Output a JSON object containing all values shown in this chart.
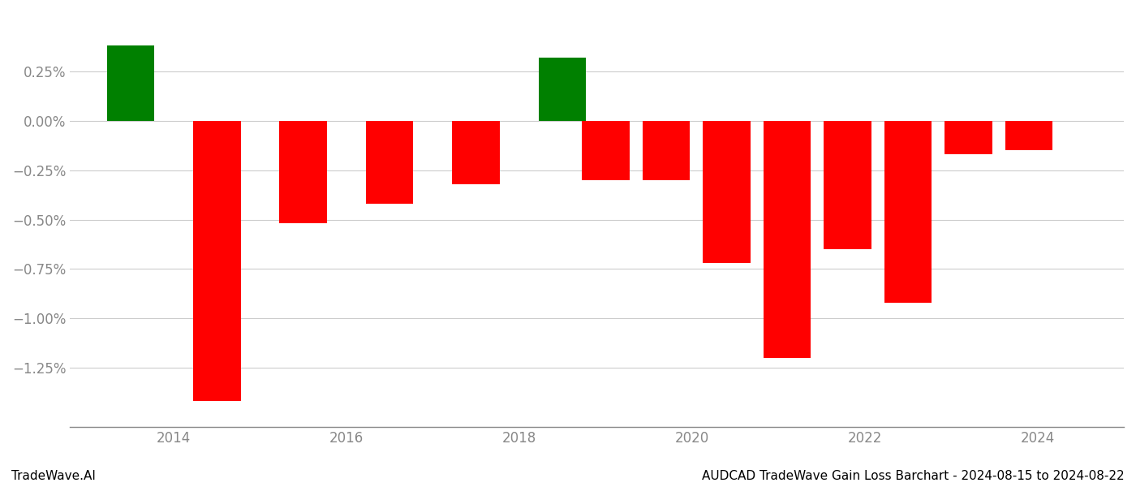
{
  "years": [
    2013.5,
    2014.5,
    2015.5,
    2016.5,
    2017.5,
    2018.5,
    2019.0,
    2019.7,
    2020.4,
    2021.1,
    2021.8,
    2022.5,
    2023.2,
    2023.9
  ],
  "values": [
    0.38,
    -1.42,
    -0.52,
    -0.42,
    -0.32,
    0.32,
    -0.3,
    -0.3,
    -0.72,
    -1.2,
    -0.65,
    -0.92,
    -0.17,
    -0.15
  ],
  "bar_width": 0.55,
  "positive_color": "#008000",
  "negative_color": "#ff0000",
  "background_color": "#ffffff",
  "grid_color": "#cccccc",
  "axis_color": "#888888",
  "tick_label_color": "#888888",
  "ylim": [
    -1.55,
    0.55
  ],
  "ytick_values": [
    0.25,
    0.0,
    -0.25,
    -0.5,
    -0.75,
    -1.0,
    -1.25
  ],
  "footer_left": "TradeWave.AI",
  "footer_right": "AUDCAD TradeWave Gain Loss Barchart - 2024-08-15 to 2024-08-22",
  "xtick_labels": [
    "2014",
    "2016",
    "2018",
    "2020",
    "2022",
    "2024"
  ],
  "xtick_positions": [
    2014,
    2016,
    2018,
    2020,
    2022,
    2024
  ],
  "xlim": [
    2012.8,
    2025.0
  ]
}
